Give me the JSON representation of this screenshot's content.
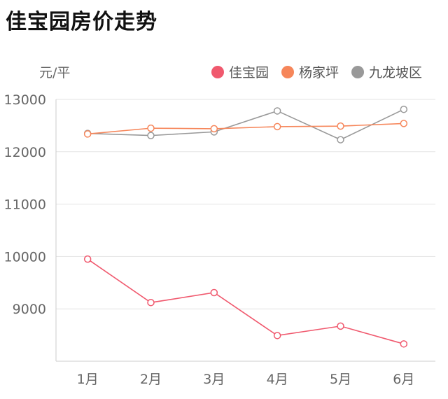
{
  "title": "佳宝园房价走势",
  "chart_data": {
    "type": "line",
    "title": "佳宝园房价走势",
    "ylabel": "元/平",
    "xlabel": "",
    "categories": [
      "1月",
      "2月",
      "3月",
      "4月",
      "5月",
      "6月"
    ],
    "ylim": [
      8000,
      13000
    ],
    "yticks": [
      9000,
      10000,
      11000,
      12000,
      13000
    ],
    "legend_position": "top-right",
    "grid": true,
    "series": [
      {
        "name": "佳宝园",
        "color": "#f0596e",
        "values": [
          9950,
          9120,
          9310,
          8490,
          8670,
          8330
        ]
      },
      {
        "name": "杨家坪",
        "color": "#f6865a",
        "values": [
          12340,
          12450,
          12440,
          12480,
          12490,
          12540
        ]
      },
      {
        "name": "九龙坡区",
        "color": "#999999",
        "values": [
          12350,
          12310,
          12380,
          12780,
          12230,
          12810
        ]
      }
    ]
  }
}
